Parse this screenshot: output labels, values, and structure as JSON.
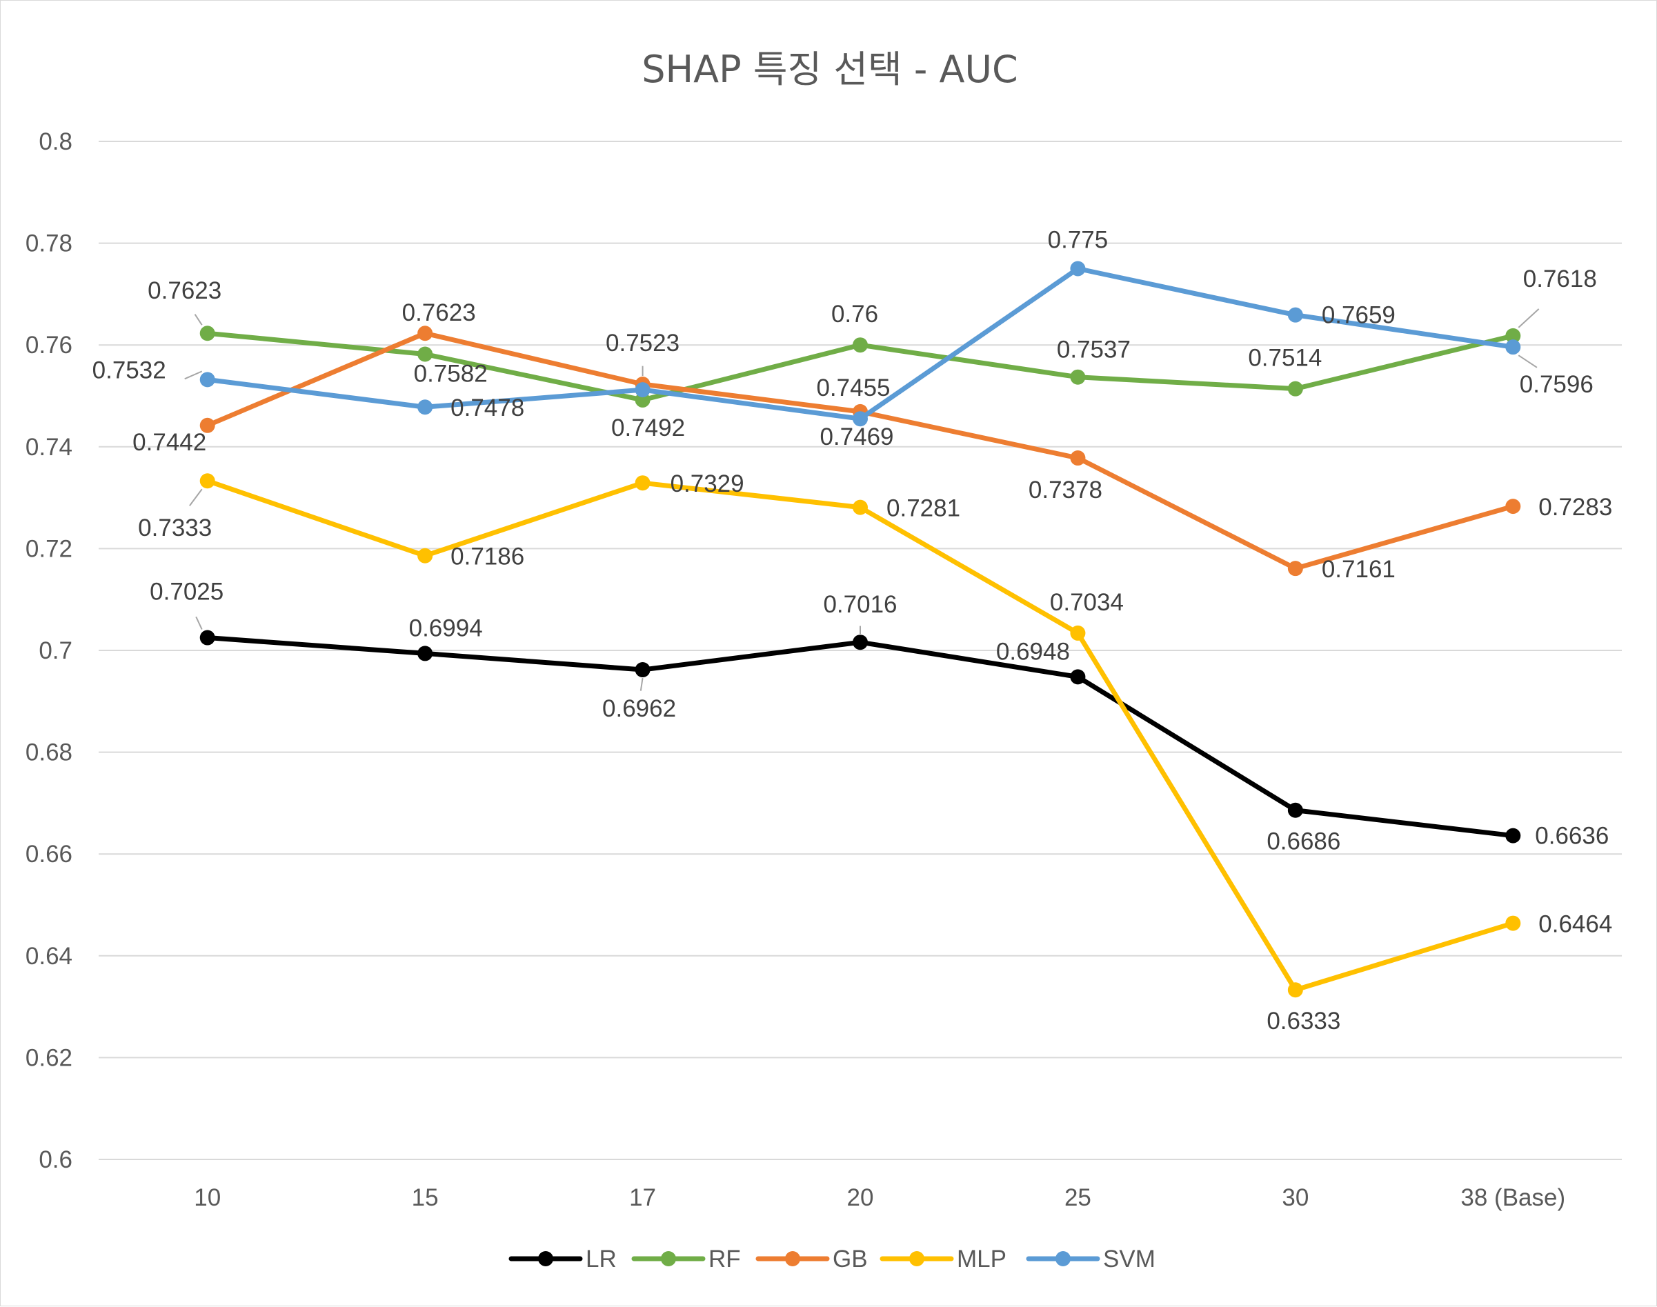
{
  "chart_data": {
    "type": "line",
    "title": "SHAP 특징 선택 - AUC",
    "xlabel": "",
    "ylabel": "",
    "categories": [
      "10",
      "15",
      "17",
      "20",
      "25",
      "30",
      "38 (Base)"
    ],
    "ylim": [
      0.6,
      0.8
    ],
    "yticks": [
      "0.6",
      "0.62",
      "0.64",
      "0.66",
      "0.68",
      "0.7",
      "0.72",
      "0.74",
      "0.76",
      "0.78",
      "0.8"
    ],
    "grid": true,
    "legend_position": "bottom",
    "series": [
      {
        "name": "LR",
        "color": "#000000",
        "values": [
          0.7025,
          0.6994,
          0.6962,
          0.7016,
          0.6948,
          0.6686,
          0.6636
        ],
        "labels": [
          "0.7025",
          "0.6994",
          "0.6962",
          "0.7016",
          "0.6948",
          "0.6686",
          "0.6636"
        ]
      },
      {
        "name": "RF",
        "color": "#70ad47",
        "values": [
          0.7623,
          0.7582,
          0.7492,
          0.76,
          0.7537,
          0.7514,
          0.7618
        ],
        "labels": [
          "0.7623",
          "0.7582",
          "0.7492",
          "0.76",
          "0.7537",
          "0.7514",
          "0.7618"
        ]
      },
      {
        "name": "GB",
        "color": "#ed7d31",
        "values": [
          0.7442,
          0.7623,
          0.7523,
          0.7469,
          0.7378,
          0.7161,
          0.7283
        ],
        "labels": [
          "0.7442",
          "0.7623",
          "0.7523",
          "0.7469",
          "0.7378",
          "0.7161",
          "0.7283"
        ]
      },
      {
        "name": "MLP",
        "color": "#ffc000",
        "values": [
          0.7333,
          0.7186,
          0.7329,
          0.7281,
          0.7034,
          0.6333,
          0.6464
        ],
        "labels": [
          "0.7333",
          "0.7186",
          "0.7329",
          "0.7281",
          "0.7034",
          "0.6333",
          "0.6464"
        ]
      },
      {
        "name": "SVM",
        "color": "#5b9bd5",
        "values": [
          0.7532,
          0.7478,
          0.7512,
          0.7455,
          0.775,
          0.7659,
          0.7596
        ],
        "labels": [
          "0.7532",
          "0.7478",
          null,
          "0.7455",
          "0.775",
          "0.7659",
          "0.7596"
        ]
      }
    ]
  }
}
